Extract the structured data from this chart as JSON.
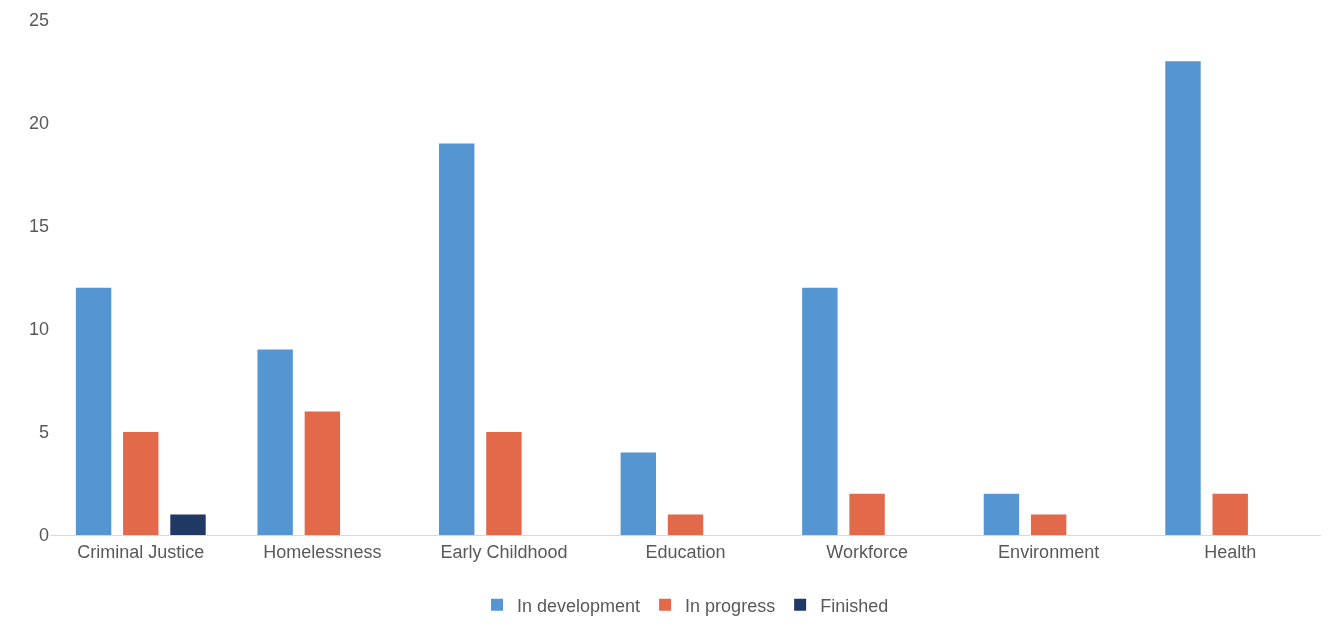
{
  "chart_data": {
    "type": "bar",
    "categories": [
      "Criminal Justice",
      "Homelessness",
      "Early Childhood",
      "Education",
      "Workforce",
      "Environment",
      "Health"
    ],
    "series": [
      {
        "name": "In development",
        "color": "#5596d2",
        "values": [
          12,
          9,
          19,
          4,
          12,
          2,
          23
        ]
      },
      {
        "name": "In progress",
        "color": "#e2694a",
        "values": [
          5,
          6,
          5,
          1,
          2,
          1,
          2
        ]
      },
      {
        "name": "Finished",
        "color": "#1f3864",
        "values": [
          1,
          0,
          0,
          0,
          0,
          0,
          0
        ]
      }
    ],
    "ylim": [
      0,
      25
    ],
    "yticks": [
      0,
      5,
      10,
      15,
      20,
      25
    ],
    "grid": false,
    "legend": "bottom"
  }
}
